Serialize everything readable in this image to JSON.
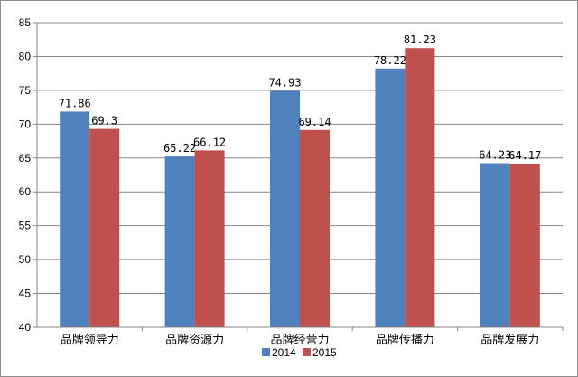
{
  "chart_data": {
    "type": "bar",
    "categories": [
      "品牌领导力",
      "品牌资源力",
      "品牌经营力",
      "品牌传播力",
      "品牌发展力"
    ],
    "series": [
      {
        "name": "2014",
        "values": [
          71.86,
          65.22,
          74.93,
          78.22,
          64.23
        ],
        "labels": [
          "71.86",
          "65.22",
          "74.93",
          "78.22",
          "64.23"
        ],
        "color": "#4f81bd"
      },
      {
        "name": "2015",
        "values": [
          69.3,
          66.12,
          69.14,
          81.23,
          64.17
        ],
        "labels": [
          "69.3",
          "66.12",
          "69.14",
          "81.23",
          "64.17"
        ],
        "color": "#c0504d"
      }
    ],
    "ylim": [
      40,
      85
    ],
    "yticks": [
      "40",
      "45",
      "50",
      "55",
      "60",
      "65",
      "70",
      "75",
      "80",
      "85"
    ],
    "grid": true,
    "legend_position": "bottom",
    "title": "",
    "xlabel": "",
    "ylabel": ""
  }
}
